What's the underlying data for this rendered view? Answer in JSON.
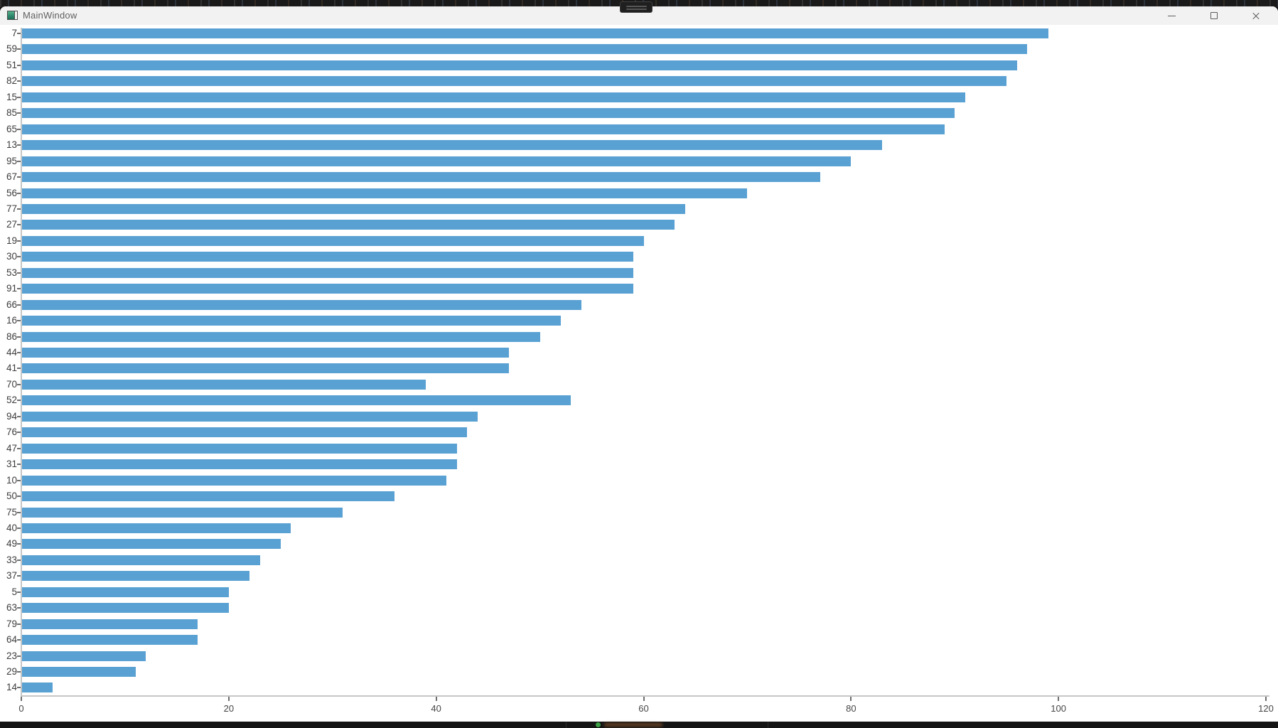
{
  "window": {
    "title": "MainWindow"
  },
  "titlebar": {
    "icons": {
      "app": "app-window-icon",
      "minimize": "minimize-icon",
      "maximize": "maximize-icon",
      "close": "close-icon"
    }
  },
  "os_overlay": {
    "grab_handle_icon": "drag-handle-icon"
  },
  "chart_data": {
    "type": "bar",
    "orientation": "horizontal",
    "title": "",
    "xlabel": "",
    "ylabel": "",
    "categories": [
      "7",
      "59",
      "51",
      "82",
      "15",
      "85",
      "65",
      "13",
      "95",
      "67",
      "56",
      "77",
      "27",
      "19",
      "30",
      "53",
      "91",
      "66",
      "16",
      "86",
      "44",
      "41",
      "70",
      "52",
      "94",
      "76",
      "47",
      "31",
      "10",
      "50",
      "75",
      "40",
      "49",
      "33",
      "37",
      "5",
      "63",
      "79",
      "64",
      "23",
      "29",
      "14"
    ],
    "values": [
      99,
      97,
      96,
      95,
      91,
      90,
      89,
      83,
      80,
      77,
      70,
      64,
      63,
      60,
      59,
      59,
      59,
      54,
      52,
      50,
      47,
      47,
      39,
      53,
      44,
      43,
      42,
      42,
      41,
      36,
      31,
      26,
      25,
      23,
      22,
      20,
      20,
      17,
      17,
      12,
      11,
      3
    ],
    "xlim": [
      0,
      120
    ],
    "x_ticks": [
      0,
      20,
      40,
      60,
      80,
      100,
      120
    ],
    "bar_color": "#5aa1d3",
    "grid": false,
    "legend": null
  }
}
